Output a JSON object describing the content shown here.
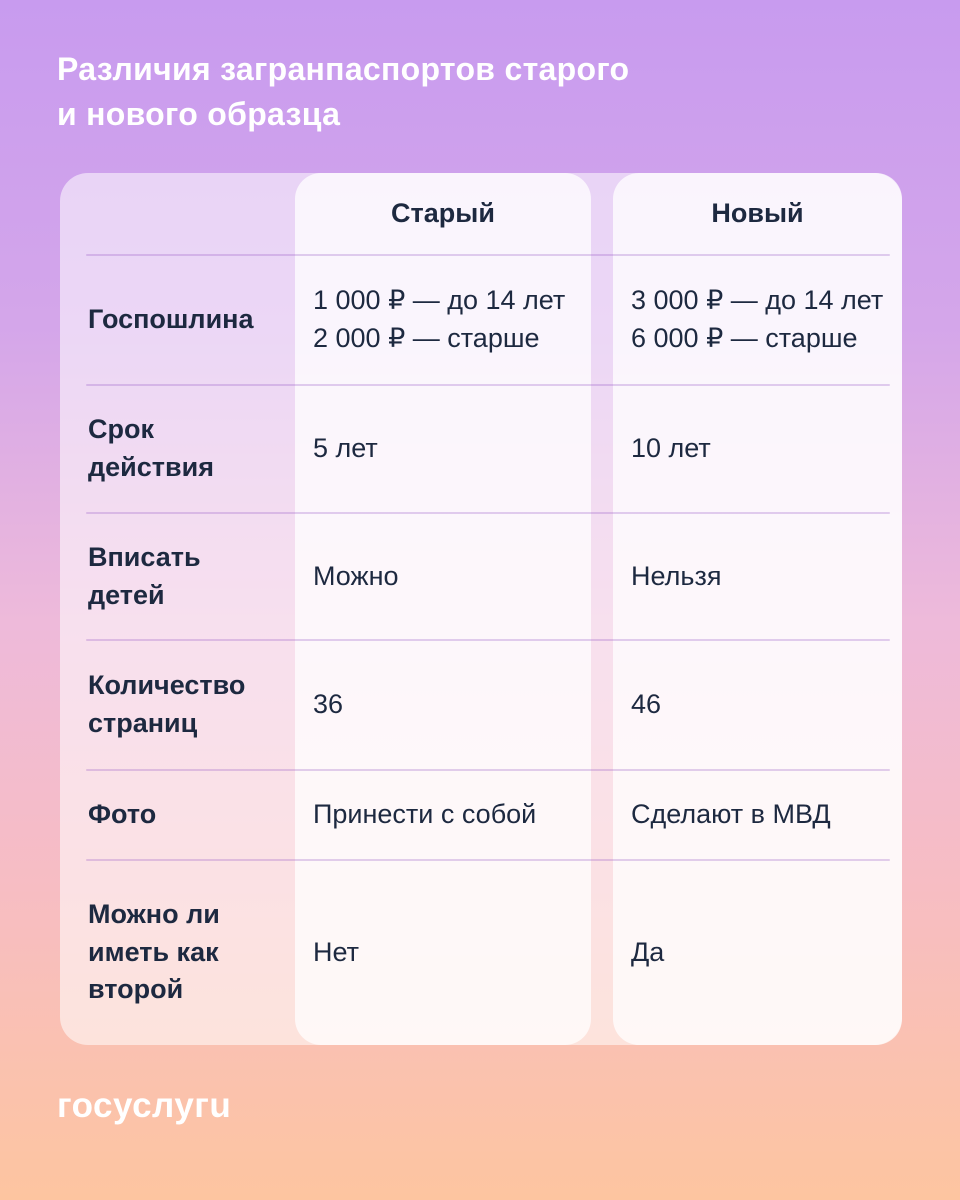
{
  "title": "Различия загранпаспортов старого\nи нового образца",
  "table": {
    "columns": [
      "Старый",
      "Новый"
    ],
    "rows": [
      {
        "label": "Госпошлина",
        "old": "1 000 ₽ — до 14 лет\n2 000 ₽ — старше",
        "new": "3 000 ₽ — до 14 лет\n6 000 ₽ — старше"
      },
      {
        "label": "Срок\nдействия",
        "old": "5 лет",
        "new": "10 лет"
      },
      {
        "label": "Вписать\nдетей",
        "old": "Можно",
        "new": "Нельзя"
      },
      {
        "label": "Количество\nстраниц",
        "old": "36",
        "new": "46"
      },
      {
        "label": "Фото",
        "old": "Принести с собой",
        "new": "Сделают в МВД"
      },
      {
        "label": "Можно ли\nиметь как\nвторой",
        "old": "Нет",
        "new": "Да"
      }
    ]
  },
  "footer": {
    "logo": "госуслугu"
  },
  "colors": {
    "background_top": "#c89bef",
    "background_middle": "#eebada",
    "background_bottom": "#fdc5a0",
    "text_dark": "#1d2940",
    "text_light": "#ffffff",
    "divider": "#d2b3e8"
  }
}
